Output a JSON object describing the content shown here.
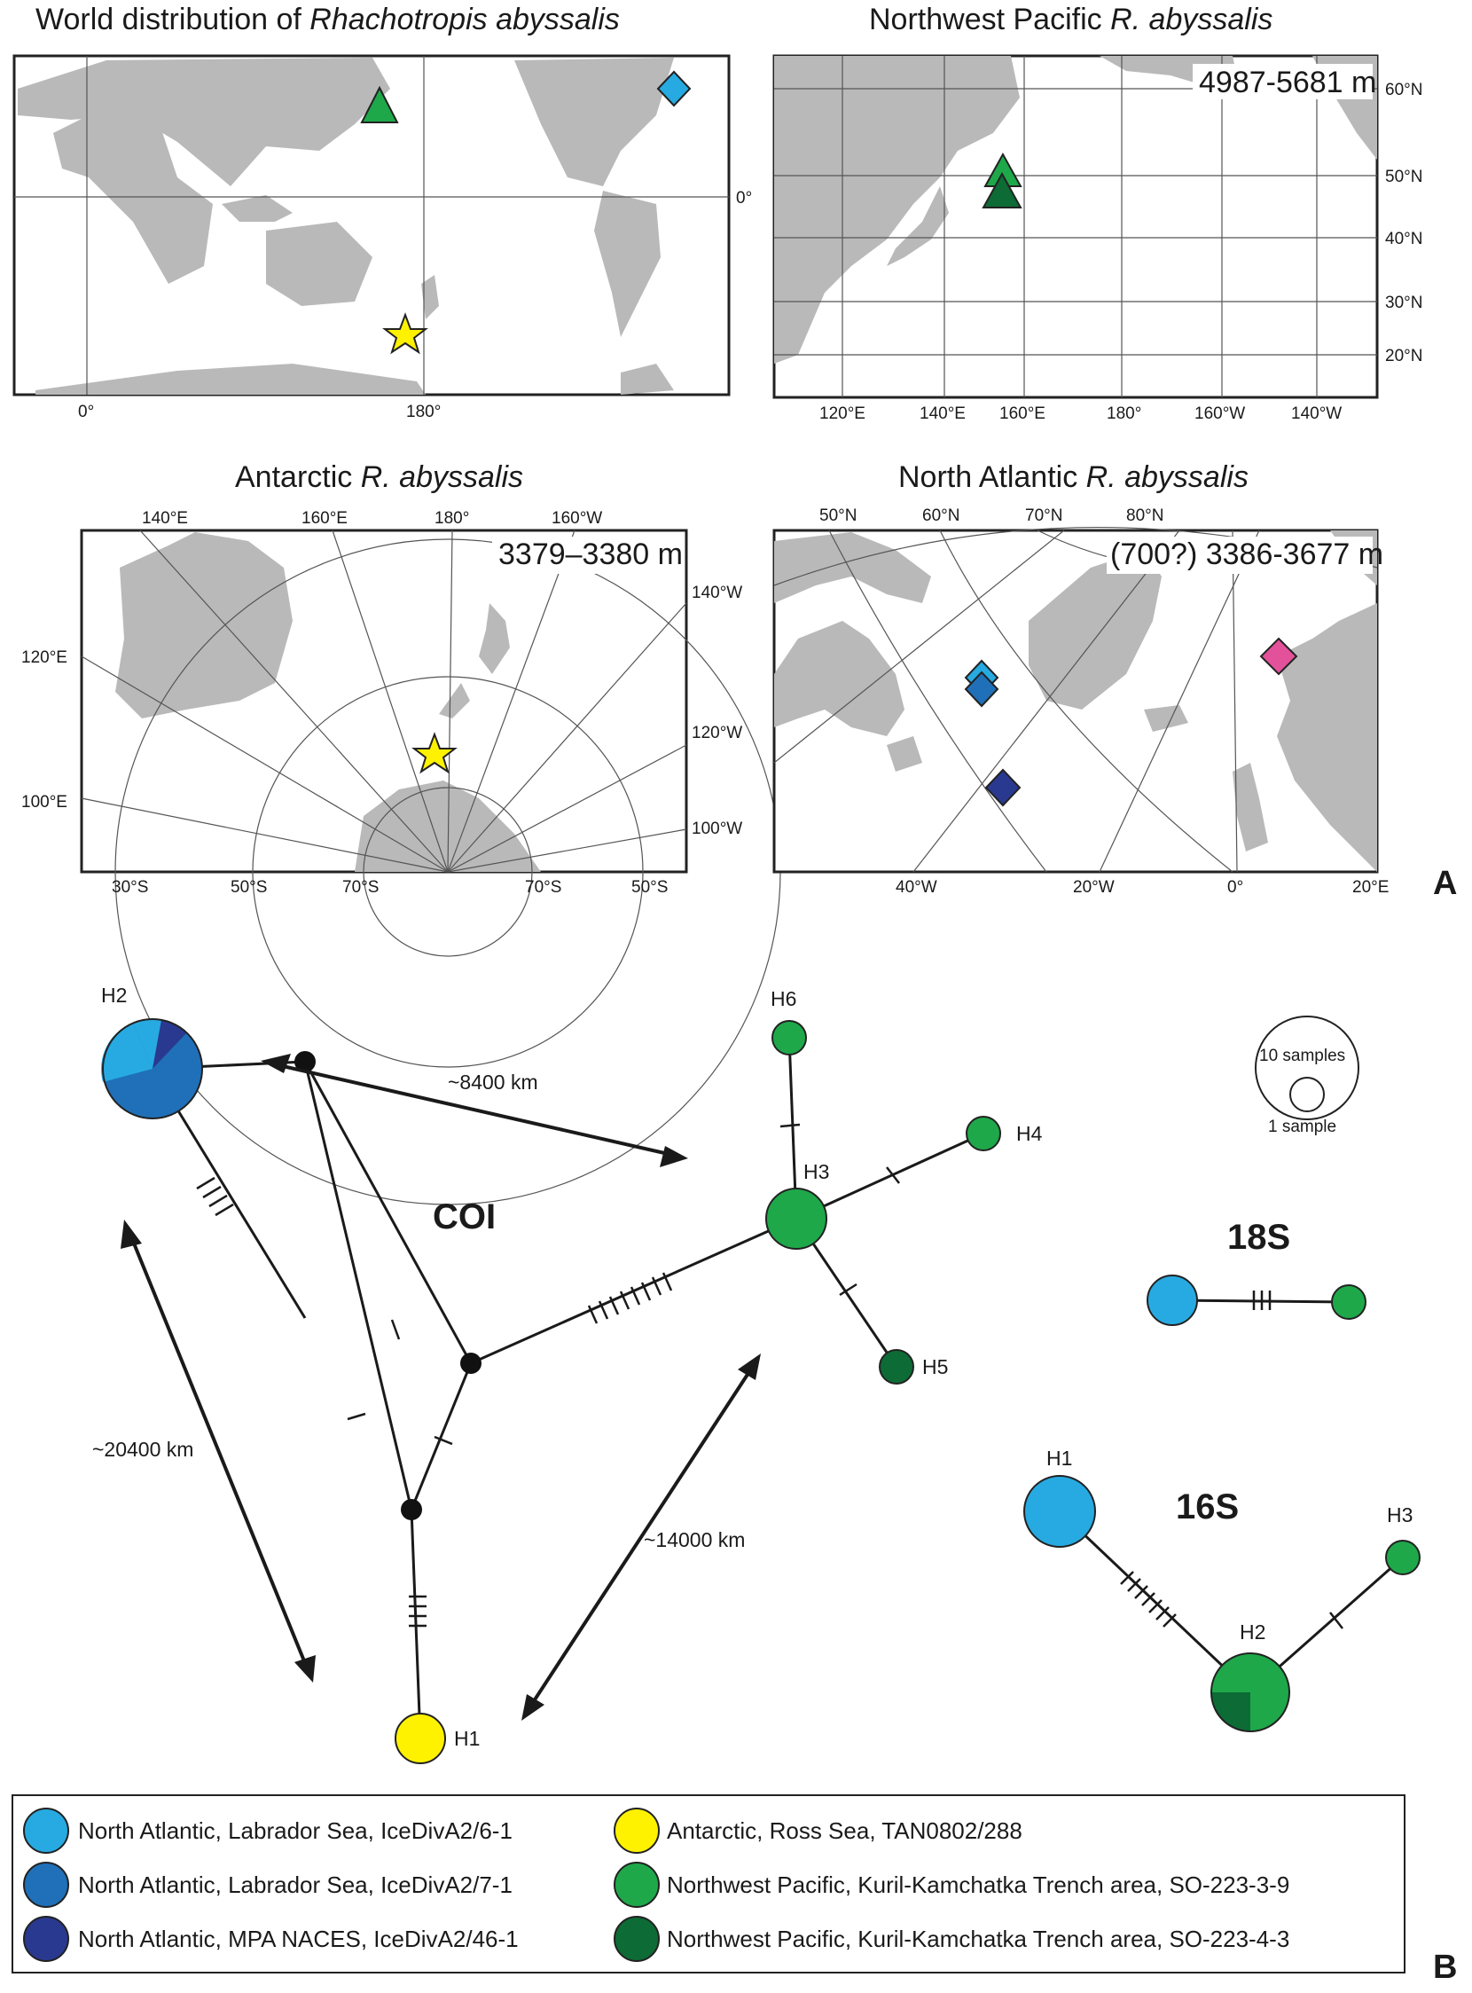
{
  "panel_a": {
    "letter": "A",
    "world": {
      "title_prefix": "World distribution of ",
      "title_species": "Rhachotropis abyssalis",
      "lat_labels": [
        "0°"
      ],
      "lon_labels": [
        "0°",
        "180°"
      ]
    },
    "nw_pacific": {
      "title_prefix": "Northwest Pacific ",
      "title_species": "R. abyssalis",
      "depth": "4987-5681 m",
      "lat_labels": [
        "60°N",
        "50°N",
        "40°N",
        "30°N",
        "20°N"
      ],
      "lon_labels": [
        "120°E",
        "140°E",
        "160°E",
        "180°",
        "160°W",
        "140°W"
      ]
    },
    "antarctic": {
      "title_prefix": "Antarctic ",
      "title_species": "R. abyssalis",
      "depth": "3379–3380 m",
      "top_labels": [
        "140°E",
        "160°E",
        "180°",
        "160°W"
      ],
      "left_labels": [
        "120°E",
        "100°E"
      ],
      "right_labels": [
        "140°W",
        "120°W",
        "100°W"
      ],
      "bottom_labels": [
        "30°S",
        "50°S",
        "70°S",
        "70°S",
        "50°S"
      ]
    },
    "north_atlantic": {
      "title_prefix": "North Atlantic ",
      "title_species": "R. abyssalis",
      "depth": "(700?) 3386-3677 m",
      "top_labels": [
        "50°N",
        "60°N",
        "70°N",
        "80°N"
      ],
      "bottom_labels": [
        "40°W",
        "20°W",
        "0°",
        "20°E"
      ]
    }
  },
  "panel_b": {
    "letter": "B",
    "coi": {
      "label": "COI",
      "haplotypes": [
        "H1",
        "H2",
        "H3",
        "H4",
        "H5",
        "H6"
      ],
      "distances": [
        "~8400 km",
        "~20400 km",
        "~14000 km"
      ]
    },
    "s18": {
      "label": "18S"
    },
    "s16": {
      "label": "16S",
      "haplotypes": [
        "H1",
        "H2",
        "H3"
      ]
    },
    "size_legend": {
      "large": "10 samples",
      "small": "1 sample"
    }
  },
  "legend": [
    {
      "label": "North Atlantic, Labrador Sea, IceDivA2/6-1",
      "color": "#27aae1"
    },
    {
      "label": "North Atlantic, Labrador Sea, IceDivA2/7-1",
      "color": "#1f70b8"
    },
    {
      "label": "North Atlantic, MPA NACES, IceDivA2/46-1",
      "color": "#2a3990"
    },
    {
      "label": "Antarctic, Ross Sea, TAN0802/288",
      "color": "#fff200"
    },
    {
      "label": "Northwest Pacific, Kuril-Kamchatka Trench area, SO-223-3-9",
      "color": "#1ea84a"
    },
    {
      "label": "Northwest Pacific, Kuril-Kamchatka Trench area, SO-223-4-3",
      "color": "#0d6b35"
    }
  ],
  "colors": {
    "land": "#b9b9b9",
    "pink": "#e4519b"
  }
}
